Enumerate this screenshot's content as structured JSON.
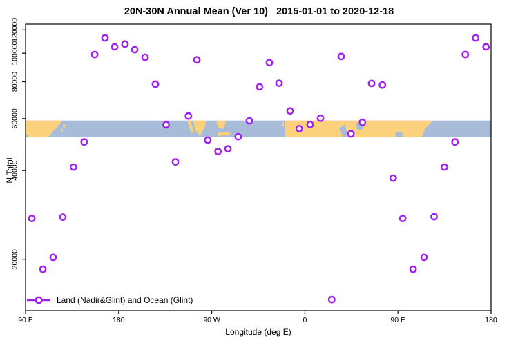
{
  "chart_data": {
    "type": "scatter",
    "title": "20N-30N Annual Mean (Ver 10)   2015-01-01 to 2020-12-18",
    "xlabel": "Longitude (deg E)",
    "ylabel": "N Total",
    "y_scale": "log10",
    "grid": "off",
    "legend_position": "bottom-left-inside",
    "x_range_deg": [
      90,
      540
    ],
    "y_range": [
      13400,
      125500
    ],
    "x_ticks": [
      {
        "deg": 90,
        "label": "90 E"
      },
      {
        "deg": 180,
        "label": "180"
      },
      {
        "deg": 270,
        "label": "90 W"
      },
      {
        "deg": 360,
        "label": "0"
      },
      {
        "deg": 450,
        "label": "90 E"
      },
      {
        "deg": 540,
        "label": "180"
      }
    ],
    "y_ticks": [
      20000,
      40000,
      60000,
      80000,
      100000,
      120000
    ],
    "series": [
      {
        "name": "Land (Nadir&Glint) and Ocean (Glint)",
        "color": "#A020F0",
        "marker": "open-circle",
        "points": [
          {
            "lon_deg": 96.0,
            "n": 27500
          },
          {
            "lon_deg": 106.7,
            "n": 18500
          },
          {
            "lon_deg": 116.7,
            "n": 20300
          },
          {
            "lon_deg": 126.0,
            "n": 27800
          },
          {
            "lon_deg": 136.3,
            "n": 41100
          },
          {
            "lon_deg": 146.7,
            "n": 50000
          },
          {
            "lon_deg": 156.8,
            "n": 99000
          },
          {
            "lon_deg": 166.8,
            "n": 112700
          },
          {
            "lon_deg": 176.1,
            "n": 105100
          },
          {
            "lon_deg": 186.1,
            "n": 107400
          },
          {
            "lon_deg": 195.5,
            "n": 102800
          },
          {
            "lon_deg": 205.5,
            "n": 96900
          },
          {
            "lon_deg": 215.5,
            "n": 78500
          },
          {
            "lon_deg": 225.9,
            "n": 57200
          },
          {
            "lon_deg": 234.9,
            "n": 42800
          },
          {
            "lon_deg": 247.4,
            "n": 61200
          },
          {
            "lon_deg": 255.6,
            "n": 95000
          },
          {
            "lon_deg": 266.1,
            "n": 50700
          },
          {
            "lon_deg": 276.1,
            "n": 46400
          },
          {
            "lon_deg": 285.6,
            "n": 47400
          },
          {
            "lon_deg": 295.6,
            "n": 52100
          },
          {
            "lon_deg": 306.3,
            "n": 59000
          },
          {
            "lon_deg": 316.2,
            "n": 76900
          },
          {
            "lon_deg": 325.7,
            "n": 92900
          },
          {
            "lon_deg": 335.0,
            "n": 79100
          },
          {
            "lon_deg": 345.7,
            "n": 63700
          },
          {
            "lon_deg": 354.6,
            "n": 55500
          },
          {
            "lon_deg": 365.1,
            "n": 57300
          },
          {
            "lon_deg": 375.1,
            "n": 60200
          },
          {
            "lon_deg": 386.0,
            "n": 14600
          },
          {
            "lon_deg": 395.1,
            "n": 97500
          },
          {
            "lon_deg": 404.5,
            "n": 53300
          },
          {
            "lon_deg": 415.6,
            "n": 58300
          },
          {
            "lon_deg": 424.5,
            "n": 79000
          },
          {
            "lon_deg": 435.0,
            "n": 78000
          },
          {
            "lon_deg": 445.4,
            "n": 37700
          },
          {
            "lon_deg": 454.6,
            "n": 27500
          },
          {
            "lon_deg": 464.6,
            "n": 18500
          },
          {
            "lon_deg": 475.3,
            "n": 20300
          },
          {
            "lon_deg": 484.9,
            "n": 27900
          },
          {
            "lon_deg": 494.9,
            "n": 41100
          },
          {
            "lon_deg": 505.1,
            "n": 50000
          },
          {
            "lon_deg": 515.1,
            "n": 99000
          },
          {
            "lon_deg": 525.1,
            "n": 112700
          },
          {
            "lon_deg": 535.1,
            "n": 105100
          }
        ]
      }
    ],
    "map_band": {
      "description": "world-map latitude strip 20N-30N drawn across plot",
      "ocean_color": "#A8BBD8",
      "land_color": "#FCD17C",
      "n_top": 59100,
      "n_bottom": 51900,
      "land_polys": [
        [
          [
            90,
            0
          ],
          [
            125.4,
            0
          ],
          [
            121,
            0.35
          ],
          [
            116,
            0.7
          ],
          [
            112,
            1
          ],
          [
            90.5,
            1
          ]
        ],
        [
          [
            126.3,
            0.22
          ],
          [
            128,
            0.22
          ],
          [
            128,
            0.5
          ],
          [
            126.3,
            0.5
          ]
        ],
        [
          [
            124.3,
            0.5
          ],
          [
            125.8,
            0.5
          ],
          [
            125.8,
            0.72
          ],
          [
            124.3,
            0.72
          ]
        ],
        [
          [
            246.3,
            0
          ],
          [
            249.5,
            0
          ],
          [
            252.8,
            0.68
          ],
          [
            250.3,
            0.78
          ]
        ],
        [
          [
            251.6,
            0
          ],
          [
            264.3,
            0
          ],
          [
            263,
            0.45
          ],
          [
            258.5,
            0.92
          ],
          [
            254.5,
            0.6
          ],
          [
            253,
            0.25
          ]
        ],
        [
          [
            274.3,
            0.02
          ],
          [
            283.7,
            0.02
          ],
          [
            281.5,
            0.5
          ],
          [
            276.5,
            0.45
          ]
        ],
        [
          [
            275.6,
            0.74
          ],
          [
            287,
            0.7
          ],
          [
            287.8,
            0.86
          ],
          [
            276.2,
            0.92
          ]
        ],
        [
          [
            338.3,
            0.12
          ],
          [
            339.8,
            0.12
          ],
          [
            339.8,
            0.35
          ],
          [
            338.3,
            0.35
          ]
        ],
        [
          [
            341,
            0
          ],
          [
            484,
            0
          ],
          [
            476,
            0.5
          ],
          [
            473,
            1
          ],
          [
            341,
            1
          ]
        ]
      ],
      "ocean_notches": [
        [
          [
            90,
            0.8
          ],
          [
            92.5,
            0.88
          ],
          [
            92,
            1
          ],
          [
            90,
            1
          ]
        ],
        [
          [
            393.5,
            0.45
          ],
          [
            399,
            0.22
          ],
          [
            401.5,
            1
          ],
          [
            396.5,
            1
          ]
        ],
        [
          [
            409.8,
            0.15
          ],
          [
            417.8,
            0.2
          ],
          [
            415,
            0.58
          ],
          [
            410.3,
            0.52
          ]
        ],
        [
          [
            447.5,
            0.75
          ],
          [
            453.5,
            0.68
          ],
          [
            455.5,
            1
          ],
          [
            447.5,
            1
          ]
        ]
      ]
    }
  },
  "legend": {
    "label": "Land (Nadir&Glint) and Ocean (Glint)",
    "color": "#A020F0"
  }
}
